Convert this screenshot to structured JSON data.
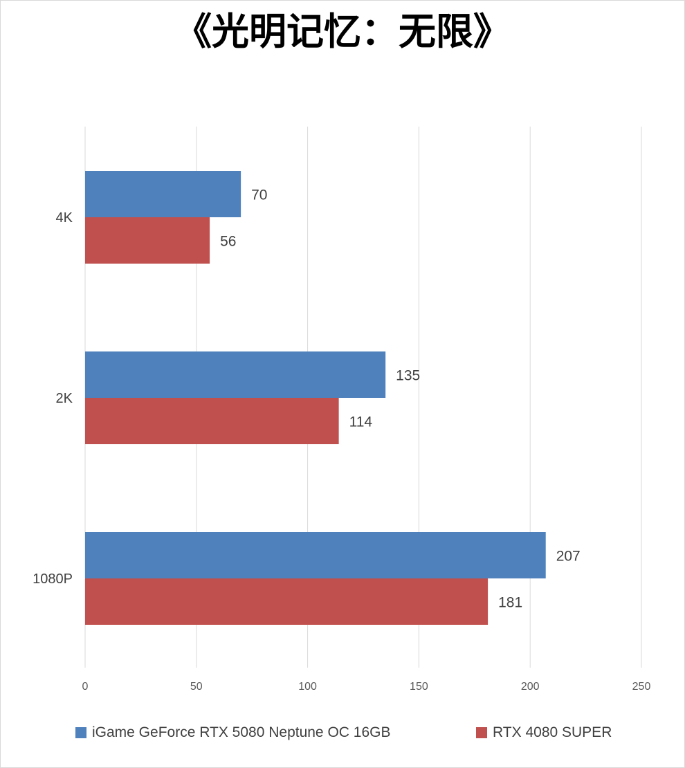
{
  "chart_data": {
    "type": "bar",
    "orientation": "horizontal",
    "title": "《光明记忆：无限》",
    "categories": [
      "4K",
      "2K",
      "1080P"
    ],
    "series": [
      {
        "name": "iGame GeForce RTX 5080 Neptune OC 16GB",
        "values": [
          70,
          135,
          207
        ],
        "color": "#4f81bd"
      },
      {
        "name": "RTX 4080 SUPER",
        "values": [
          56,
          114,
          181
        ],
        "color": "#c0504d"
      }
    ],
    "x_ticks": [
      "0",
      "50",
      "100",
      "150",
      "200",
      "250"
    ],
    "xlim": [
      0,
      250
    ],
    "grid": "vertical",
    "legend_position": "bottom",
    "data_labels": true
  }
}
